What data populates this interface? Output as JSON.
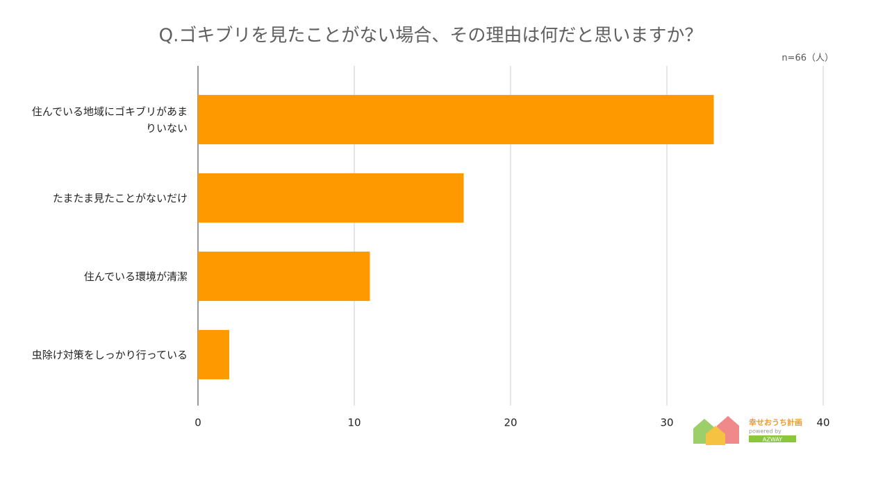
{
  "chart_data": {
    "type": "bar",
    "orientation": "horizontal",
    "title": "Q.ゴキブリを見たことがない場合、その理由は何だと思いますか？",
    "subtitle": "n=66（人）",
    "categories": [
      "住んでいる地域にゴキブリがあまりいない",
      "たまたま見たことがないだけ",
      "住んでいる環境が清潔",
      "虫除け対策をしっかり行っている"
    ],
    "values": [
      33,
      17,
      11,
      2
    ],
    "color": "#ff9900",
    "xlim": [
      0,
      40
    ],
    "xticks": [
      0,
      10,
      20,
      30,
      40
    ],
    "grid": true
  },
  "logo": {
    "name": "幸せおうち計画",
    "powered": "powered by",
    "brand": "AZWAY"
  }
}
